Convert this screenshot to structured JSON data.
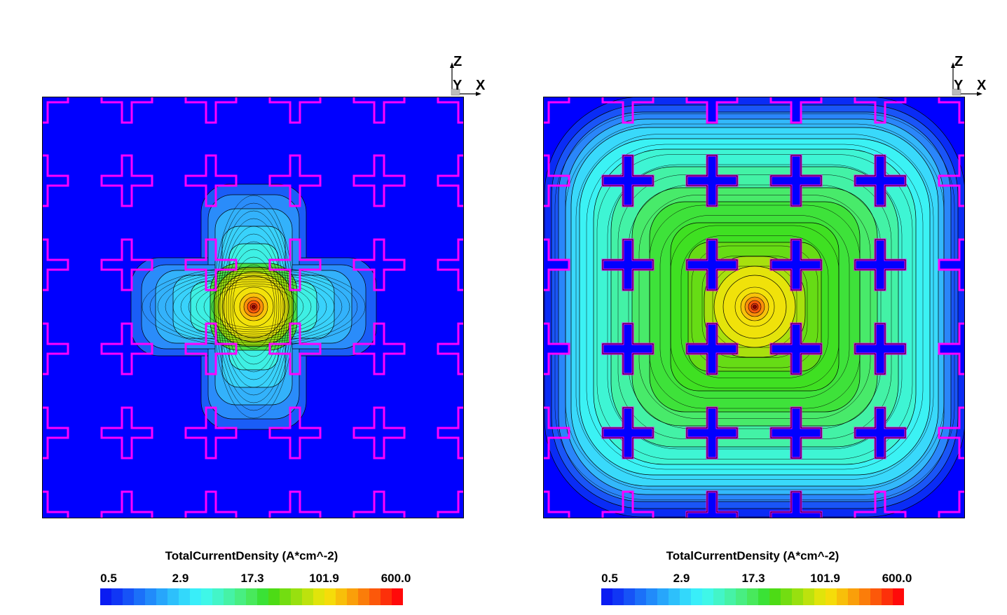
{
  "panels": [
    {
      "id": "left",
      "axes": {
        "z_label": "Z",
        "y_label": "Y",
        "x_label": "X"
      },
      "colorbar": {
        "title": "TotalCurrentDensity (A*cm^-2)",
        "ticks": [
          "0.5",
          "2.9",
          "17.3",
          "101.9",
          "600.0"
        ]
      },
      "current_spread": "localized"
    },
    {
      "id": "right",
      "axes": {
        "z_label": "Z",
        "y_label": "Y",
        "x_label": "X"
      },
      "colorbar": {
        "title": "TotalCurrentDensity (A*cm^-2)",
        "ticks": [
          "0.5",
          "2.9",
          "17.3",
          "101.9",
          "600.0"
        ]
      },
      "current_spread": "wide"
    }
  ],
  "colors": {
    "contact_outline": "#ff00ff",
    "background": "#0000ff",
    "colormap": [
      "#0a1cf2",
      "#1036f5",
      "#1653f7",
      "#1b70f9",
      "#218bfa",
      "#27a6fb",
      "#2dc0fb",
      "#33d8fb",
      "#39eef9",
      "#3ff7e8",
      "#43f5c8",
      "#46f2a6",
      "#48ee82",
      "#48e95c",
      "#3ae236",
      "#4ddb15",
      "#73dd11",
      "#98e00f",
      "#bde20d",
      "#e0e40b",
      "#f5dc0a",
      "#f8bf0a",
      "#fa9f0a",
      "#fb7d0a",
      "#fc580a",
      "#fd300a",
      "#ff0a0a"
    ]
  }
}
